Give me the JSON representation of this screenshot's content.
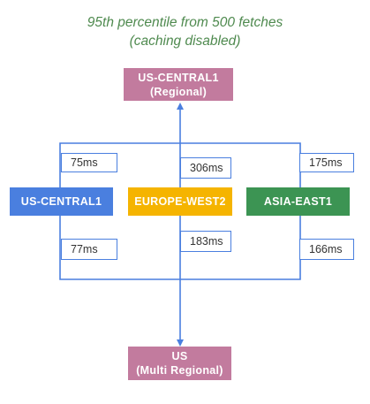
{
  "title": {
    "line1": "95th percentile from 500 fetches",
    "line2": "(caching disabled)"
  },
  "destinations": {
    "regional": {
      "line1": "US-CENTRAL1",
      "line2": "(Regional)"
    },
    "multi_regional": {
      "line1": "US",
      "line2": "(Multi Regional)"
    }
  },
  "sources": [
    {
      "label": "US-CENTRAL1",
      "color": "#4a7fdf"
    },
    {
      "label": "EUROPE-WEST2",
      "color": "#f5b400"
    },
    {
      "label": "ASIA-EAST1",
      "color": "#3c9453"
    }
  ],
  "latencies": {
    "us_central1_to_regional": "75ms",
    "europe_west2_to_regional": "306ms",
    "asia_east1_to_regional": "175ms",
    "us_central1_to_multi_regional": "77ms",
    "europe_west2_to_multi_regional": "183ms",
    "asia_east1_to_multi_regional": "166ms"
  },
  "colors": {
    "connector": "#4a7fdf",
    "destination": "#c27b9e",
    "title_text": "#4f8a4f"
  }
}
